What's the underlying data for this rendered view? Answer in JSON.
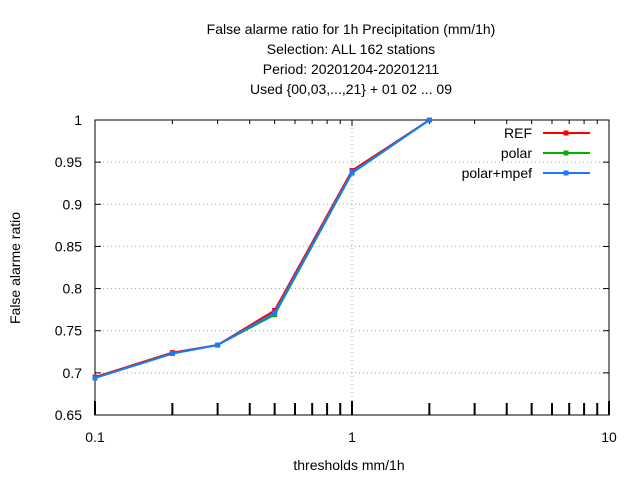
{
  "chart_data": {
    "type": "line",
    "title_lines": [
      "False alarme ratio  for 1h Precipitation (mm/1h)",
      "Selection: ALL    162 stations",
      "Period: 20201204-20201211",
      "Used {00,03,...,21} + 01 02 ... 09"
    ],
    "xlabel": "thresholds mm/1h",
    "ylabel": "False alarme ratio",
    "xscale": "log",
    "xlim": [
      0.1,
      10
    ],
    "ylim": [
      0.65,
      1
    ],
    "xticks": [
      0.1,
      1,
      10
    ],
    "xtick_labels": [
      "0.1",
      "1",
      "10"
    ],
    "yticks": [
      0.65,
      0.7,
      0.75,
      0.8,
      0.85,
      0.9,
      0.95,
      1
    ],
    "ytick_labels": [
      "0.65",
      "0.7",
      "0.75",
      "0.8",
      "0.85",
      "0.9",
      "0.95",
      "1"
    ],
    "grid": true,
    "legend_position": "top-right",
    "x": [
      0.1,
      0.2,
      0.3,
      0.5,
      1,
      2
    ],
    "series": [
      {
        "name": "REF",
        "color": "#ff0000",
        "values": [
          0.695,
          0.724,
          0.733,
          0.774,
          0.94,
          1.0
        ]
      },
      {
        "name": "polar",
        "color": "#00b000",
        "values": [
          0.694,
          0.723,
          0.733,
          0.769,
          0.937,
          1.0
        ]
      },
      {
        "name": "polar+mpef",
        "color": "#1e78ff",
        "values": [
          0.694,
          0.723,
          0.733,
          0.771,
          0.938,
          1.0
        ]
      }
    ]
  }
}
